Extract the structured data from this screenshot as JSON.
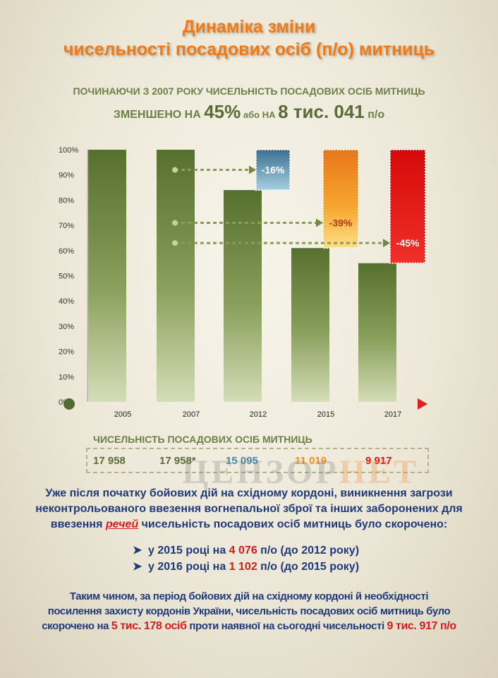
{
  "title_line1": "Динаміка  зміни",
  "title_line2": "чисельності посадових осіб (п/о) митниць",
  "subtitle_line1": "ПОЧИНАЮЧИ З 2007 РОКУ ЧИСЕЛЬНІСТЬ ПОСАДОВИХ ОСІБ МИТНИЦЬ",
  "subtitle_line2": {
    "a": "ЗМЕНШЕНО НА ",
    "b": "45%",
    "c": " або  НА ",
    "d": "8 тис. 041",
    "e": " п/о"
  },
  "colors": {
    "bar_green": "#6f8843",
    "minus16": "#4f86a8",
    "minus39": "#f0901f",
    "minus45": "#e11313",
    "title_orange": "#f07a16",
    "text_blue": "#1f3a78",
    "highlight_red": "#d71c1c"
  },
  "chart_data": {
    "type": "bar",
    "categories": [
      "2005",
      "2007",
      "2012",
      "2015",
      "2017"
    ],
    "values": [
      100,
      100,
      84,
      61,
      55
    ],
    "y_ticks": [
      "0%",
      "10%",
      "20%",
      "30%",
      "40%",
      "50%",
      "60%",
      "70%",
      "80%",
      "90%",
      "100%"
    ],
    "ylim": [
      0,
      100
    ],
    "annotations": [
      {
        "label": "-16%",
        "category": "2012",
        "from": 84,
        "to": 100,
        "color": "#4f86a8",
        "arrow_at": 92
      },
      {
        "label": "-39%",
        "category": "2015",
        "from": 61,
        "to": 100,
        "color": "#f0901f",
        "arrow_at": 71
      },
      {
        "label": "-45%",
        "category": "2017",
        "from": 55,
        "to": 100,
        "color": "#e11313",
        "arrow_at": 63
      }
    ]
  },
  "counts_label": "ЧИСЕЛЬНІСТЬ ПОСАДОВИХ ОСІБ МИТНИЦЬ",
  "counts": [
    {
      "value": "17 958",
      "color": "#5d6b3a"
    },
    {
      "value": "17 958*",
      "color": "#5d6b3a"
    },
    {
      "value": "15 095",
      "color": "#4f86a8"
    },
    {
      "value": "11 019",
      "color": "#f0901f"
    },
    {
      "value": "9 917",
      "color": "#d71c1c"
    }
  ],
  "watermark": {
    "part1": "ЦЕНЗОР",
    "part2": "НЕТ"
  },
  "para1": {
    "line1": "Уже після початку  бойових дій на східному кордоні, виникнення загрози",
    "line2": "неконтрольованого ввезення вогнепальної зброї та інших заборонених для",
    "line3a": "ввезення  ",
    "line3b": "речей",
    "line3c": "   чисельність посадових осіб митниць було скорочено:"
  },
  "bullets": [
    {
      "a": "у 2015 році на ",
      "b": "4 076",
      "c": " п/о (до 2012 року)"
    },
    {
      "a": "у 2016 році на ",
      "b": "1 102",
      "c": " п/о (до 2015 року)"
    }
  ],
  "para2": {
    "line1": "Таким чином,  за період бойових дій на східному кордоні й необхідності",
    "line2": "посилення захисту кордонів України, чисельність посадових осіб митниць було",
    "line3a": "скорочено  на  ",
    "line3b": "5 тис. 178 осіб",
    "line3c": "  проти наявної на сьогодні чисельності  ",
    "line3d": "9 тис. 917 п/о"
  }
}
